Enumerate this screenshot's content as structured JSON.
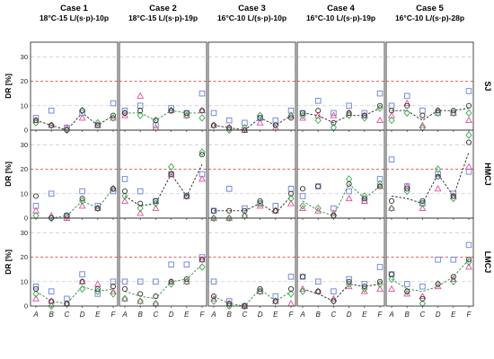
{
  "chart_data": {
    "type": "scatter",
    "columns": [
      {
        "title": "Case 1",
        "subtitle": "18°C-15 L/(s·p)-10p"
      },
      {
        "title": "Case 2",
        "subtitle": "18°C-15 L/(s·p)-19p"
      },
      {
        "title": "Case 3",
        "subtitle": "16°C-10 L/(s·p)-10p"
      },
      {
        "title": "Case 4",
        "subtitle": "16°C-10 L/(s·p)-19p"
      },
      {
        "title": "Case 5",
        "subtitle": "16°C-10 L/(s·p)-28p"
      }
    ],
    "rows": [
      {
        "label": "SJ",
        "ylabel": "DR [%]"
      },
      {
        "label": "HMCJ",
        "ylabel": "DR [%]"
      },
      {
        "label": "LMCJ",
        "ylabel": "DR [%]"
      }
    ],
    "categories": [
      "A",
      "B",
      "C",
      "D",
      "E",
      "F"
    ],
    "yticks": [
      0,
      10,
      20,
      30
    ],
    "ylim": [
      0,
      36
    ],
    "reference_line": 20,
    "grid_lines": [
      10,
      30
    ],
    "colors": {
      "square": "#6b7fd6",
      "triangle": "#e0509a",
      "diamond": "#3aa84a",
      "circle": "#333333",
      "trend": "#2a8a3a",
      "trend_dark": "#222222",
      "reference": "#e05050",
      "grid": "#cccccc"
    },
    "panels": [
      [
        {
          "square": [
            5,
            8,
            1,
            7,
            2,
            11
          ],
          "triangle": [
            4,
            2,
            1,
            5,
            2,
            5
          ],
          "diamond": [
            3,
            2,
            0,
            8,
            3,
            5
          ],
          "circle": [
            4,
            2,
            0,
            8,
            2,
            6
          ],
          "trend": [
            4,
            2,
            0,
            7,
            2,
            6
          ],
          "trend_style": "dark"
        },
        {
          "square": [
            8,
            10,
            2,
            9,
            7,
            15
          ],
          "triangle": [
            6,
            14,
            1,
            8,
            6,
            8
          ],
          "diamond": [
            7,
            6,
            4,
            8,
            6,
            5
          ],
          "circle": [
            7,
            8,
            4,
            8,
            7,
            8
          ],
          "trend": [
            7,
            7,
            4,
            8,
            7,
            7
          ],
          "trend_style": "green"
        },
        {
          "square": [
            7,
            4,
            3,
            5,
            4,
            8
          ],
          "triangle": [
            2,
            1,
            0,
            3,
            1,
            6
          ],
          "diamond": [
            2,
            0,
            1,
            6,
            2,
            6
          ],
          "circle": [
            2,
            1,
            0,
            5,
            2,
            5
          ],
          "trend": [
            2,
            1,
            0,
            5,
            2,
            6
          ],
          "trend_style": "dark"
        },
        {
          "square": [
            7,
            12,
            7,
            10,
            7,
            15
          ],
          "triangle": [
            5,
            6,
            6,
            7,
            6,
            4
          ],
          "diamond": [
            6,
            4,
            1,
            6,
            5,
            9
          ],
          "circle": [
            7,
            8,
            3,
            7,
            6,
            10
          ],
          "trend": [
            7,
            6,
            3,
            6,
            6,
            9
          ],
          "trend_style": "dark"
        },
        {
          "square": [
            10,
            14,
            8,
            7,
            7,
            16
          ],
          "triangle": [
            6,
            11,
            2,
            8,
            7,
            4
          ],
          "diamond": [
            4,
            7,
            1,
            7,
            7,
            7
          ],
          "circle": [
            8,
            10,
            6,
            8,
            8,
            10
          ],
          "trend": [
            8,
            8,
            4,
            8,
            8,
            9
          ],
          "trend_style": "dark"
        }
      ],
      [
        {
          "square": [
            5,
            10,
            1,
            11,
            5,
            11
          ],
          "triangle": [
            3,
            1,
            0,
            5,
            4,
            12
          ],
          "diamond": [
            1,
            0,
            1,
            7,
            4,
            12
          ],
          "circle": [
            9,
            0,
            1,
            8,
            4,
            12
          ],
          "trend": [
            0,
            0,
            1,
            7,
            4,
            12
          ],
          "trend_style": "green"
        },
        {
          "square": [
            16,
            11,
            7,
            18,
            9,
            18
          ],
          "triangle": [
            7,
            2,
            4,
            18,
            9,
            16
          ],
          "diamond": [
            9,
            4,
            6,
            21,
            9,
            27
          ],
          "circle": [
            11,
            6,
            7,
            18,
            9,
            26
          ],
          "trend": [
            9,
            5,
            6,
            18,
            9,
            22
          ],
          "trend_style": "dark"
        },
        {
          "square": [
            3,
            12,
            4,
            6,
            5,
            12
          ],
          "triangle": [
            0,
            0,
            1,
            5,
            3,
            6
          ],
          "diamond": [
            0,
            0,
            1,
            6,
            3,
            8
          ],
          "circle": [
            3,
            3,
            3,
            7,
            3,
            10
          ],
          "trend": [
            3,
            3,
            3,
            6,
            2,
            9
          ],
          "trend_style": "dark"
        },
        {
          "square": [
            9,
            13,
            4,
            11,
            7,
            16
          ],
          "triangle": [
            4,
            3,
            2,
            8,
            7,
            13
          ],
          "diamond": [
            5,
            4,
            1,
            16,
            9,
            14
          ],
          "circle": [
            12,
            13,
            1,
            14,
            8,
            13
          ],
          "trend": [
            7,
            3,
            1,
            14,
            8,
            13
          ],
          "trend_style": "green"
        },
        {
          "square": [
            24,
            13,
            6,
            18,
            10,
            19
          ],
          "triangle": [
            4,
            13,
            4,
            12,
            9,
            21
          ],
          "diamond": [
            4,
            11,
            6,
            20,
            8,
            34
          ],
          "circle": [
            7,
            12,
            7,
            17,
            9,
            31
          ],
          "trend": [
            9,
            8,
            6,
            18,
            9,
            27
          ],
          "trend_style": "dark"
        }
      ],
      [
        {
          "square": [
            8,
            6,
            3,
            13,
            5,
            10
          ],
          "triangle": [
            3,
            2,
            1,
            10,
            9,
            6
          ],
          "diamond": [
            5,
            0,
            1,
            7,
            6,
            5
          ],
          "circle": [
            7,
            2,
            1,
            10,
            7,
            8
          ],
          "trend": [
            6,
            2,
            1,
            8,
            6,
            7
          ],
          "trend_style": "green"
        },
        {
          "square": [
            10,
            10,
            10,
            17,
            17,
            20
          ],
          "triangle": [
            3,
            2,
            1,
            10,
            10,
            19
          ],
          "diamond": [
            3,
            2,
            1,
            9,
            10,
            16
          ],
          "circle": [
            7,
            5,
            4,
            10,
            11,
            19
          ],
          "trend": [
            6,
            4,
            3,
            10,
            11,
            17
          ],
          "trend_style": "green"
        },
        {
          "square": [
            10,
            2,
            0,
            6,
            4,
            12
          ],
          "triangle": [
            3,
            1,
            0,
            6,
            2,
            1
          ],
          "diamond": [
            2,
            0,
            0,
            6,
            2,
            5
          ],
          "circle": [
            4,
            1,
            0,
            7,
            2,
            7
          ],
          "trend": [
            4,
            1,
            0,
            7,
            2,
            6
          ],
          "trend_style": "green"
        },
        {
          "square": [
            12,
            10,
            6,
            11,
            9,
            16
          ],
          "triangle": [
            7,
            6,
            3,
            8,
            6,
            7
          ],
          "diamond": [
            6,
            6,
            2,
            9,
            7,
            9
          ],
          "circle": [
            12,
            6,
            2,
            10,
            8,
            10
          ],
          "trend": [
            7,
            5,
            2,
            9,
            8,
            9
          ],
          "trend_style": "dark"
        },
        {
          "square": [
            13,
            9,
            8,
            19,
            19,
            25
          ],
          "triangle": [
            7,
            5,
            4,
            8,
            11,
            16
          ],
          "diamond": [
            11,
            6,
            1,
            9,
            10,
            18
          ],
          "circle": [
            13,
            6,
            3,
            9,
            12,
            19
          ],
          "trend": [
            11,
            7,
            6,
            8,
            12,
            19
          ],
          "trend_style": "green"
        }
      ]
    ]
  }
}
